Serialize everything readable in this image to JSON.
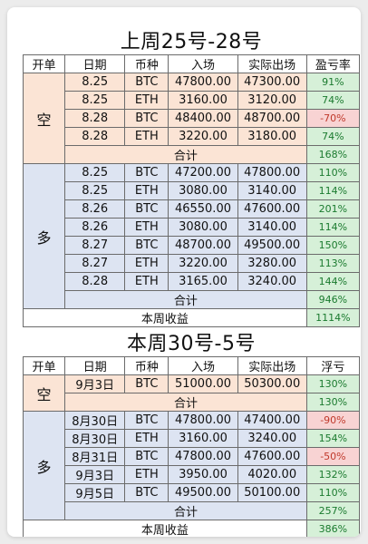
{
  "week1": {
    "title": "上周25号-28号",
    "headers": [
      "开单",
      "日期",
      "币种",
      "入场",
      "实际出场",
      "盈亏率"
    ],
    "short": {
      "label": "空",
      "rows": [
        {
          "date": "8.25",
          "coin": "BTC",
          "entry": "47800.00",
          "exit": "47300.00",
          "rate": "91%",
          "neg": false
        },
        {
          "date": "8.25",
          "coin": "ETH",
          "entry": "3160.00",
          "exit": "3120.00",
          "rate": "74%",
          "neg": false
        },
        {
          "date": "8.28",
          "coin": "BTC",
          "entry": "48400.00",
          "exit": "48700.00",
          "rate": "-70%",
          "neg": true
        },
        {
          "date": "8.28",
          "coin": "ETH",
          "entry": "3220.00",
          "exit": "3180.00",
          "rate": "74%",
          "neg": false
        }
      ],
      "subtotal_label": "合计",
      "subtotal": "168%"
    },
    "long": {
      "label": "多",
      "rows": [
        {
          "date": "8.25",
          "coin": "BTC",
          "entry": "47200.00",
          "exit": "47800.00",
          "rate": "110%",
          "neg": false
        },
        {
          "date": "8.25",
          "coin": "ETH",
          "entry": "3080.00",
          "exit": "3140.00",
          "rate": "114%",
          "neg": false
        },
        {
          "date": "8.26",
          "coin": "BTC",
          "entry": "46550.00",
          "exit": "47600.00",
          "rate": "201%",
          "neg": false
        },
        {
          "date": "8.26",
          "coin": "ETH",
          "entry": "3080.00",
          "exit": "3140.00",
          "rate": "114%",
          "neg": false
        },
        {
          "date": "8.27",
          "coin": "BTC",
          "entry": "48700.00",
          "exit": "49500.00",
          "rate": "150%",
          "neg": false
        },
        {
          "date": "8.27",
          "coin": "ETH",
          "entry": "3220.00",
          "exit": "3280.00",
          "rate": "113%",
          "neg": false
        },
        {
          "date": "8.28",
          "coin": "ETH",
          "entry": "3165.00",
          "exit": "3240.00",
          "rate": "144%",
          "neg": false
        }
      ],
      "subtotal_label": "合计",
      "subtotal": "946%"
    },
    "total_label": "本周收益",
    "total": "1114%"
  },
  "week2": {
    "title": "本周30号-5号",
    "headers": [
      "开单",
      "日期",
      "币种",
      "入场",
      "实际出场",
      "浮亏"
    ],
    "short": {
      "label": "空",
      "rows": [
        {
          "date": "9月3日",
          "coin": "BTC",
          "entry": "51000.00",
          "exit": "50300.00",
          "rate": "130%",
          "neg": false
        }
      ],
      "subtotal_label": "合计",
      "subtotal": "130%"
    },
    "long": {
      "label": "多",
      "rows": [
        {
          "date": "8月30日",
          "coin": "BTC",
          "entry": "47800.00",
          "exit": "47400.00",
          "rate": "-90%",
          "neg": true
        },
        {
          "date": "8月30日",
          "coin": "ETH",
          "entry": "3160.00",
          "exit": "3240.00",
          "rate": "154%",
          "neg": false
        },
        {
          "date": "8月31日",
          "coin": "BTC",
          "entry": "47800.00",
          "exit": "47600.00",
          "rate": "-50%",
          "neg": true
        },
        {
          "date": "9月3日",
          "coin": "ETH",
          "entry": "3950.00",
          "exit": "4020.00",
          "rate": "132%",
          "neg": false
        },
        {
          "date": "9月5日",
          "coin": "BTC",
          "entry": "49500.00",
          "exit": "50100.00",
          "rate": "110%",
          "neg": false
        }
      ],
      "subtotal_label": "合计",
      "subtotal": "257%"
    },
    "total_label": "本周收益",
    "total": "386%"
  }
}
